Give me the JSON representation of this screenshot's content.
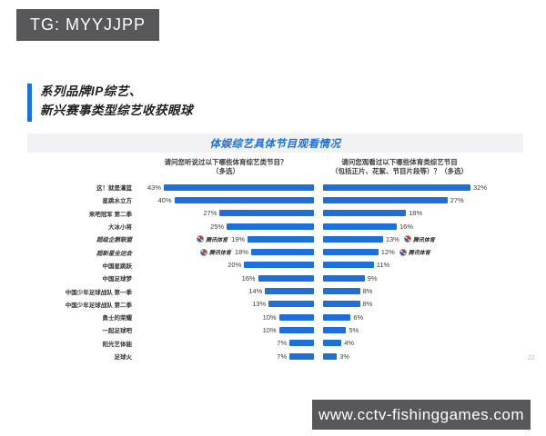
{
  "badges": {
    "top_left": "TG: MYYJJPP",
    "bottom_right": "www.cctv-fishinggames.com"
  },
  "slide": {
    "title_line1": "系列品牌IP综艺、",
    "title_line2": "新兴赛事类型综艺收获眼球",
    "page_number": "22"
  },
  "chart_data": {
    "type": "bar",
    "layout": "mirrored-horizontal-bars",
    "title": "体娱综艺具体节目观看情况",
    "unit": "%",
    "bar_color": "#1e6fd8",
    "questions": {
      "left": {
        "line1": "请问您听说过以下哪些体育综艺类节目？",
        "line2": "（多选）"
      },
      "right": {
        "line1": "请问您观看过以下哪些体育类综艺节目",
        "line2": "（包括正片、花絮、节目片段等）？（多选）"
      }
    },
    "categories": [
      "这！就是灌篮",
      "星跳水立方",
      "来吧冠军 第二季",
      "大冰小将",
      "超级企鹅联盟",
      "超新星全运会",
      "中国星跳跃",
      "中国足球梦",
      "中国少年足球战队 第一季",
      "中国少年足球战队 第二季",
      "勇士的荣耀",
      "一起足球吧",
      "阳光艺体能",
      "足球火"
    ],
    "series": [
      {
        "name": "请问您听说过以下哪些体育综艺类节目？（多选）",
        "values": [
          43,
          40,
          27,
          25,
          19,
          18,
          20,
          16,
          14,
          13,
          10,
          10,
          7,
          7
        ]
      },
      {
        "name": "请问您观看过以下哪些体育类综艺节目（包括正片、花絮、节目片段等）？（多选）",
        "values": [
          32,
          27,
          18,
          16,
          13,
          12,
          11,
          9,
          8,
          8,
          6,
          5,
          4,
          3
        ]
      }
    ],
    "branded_rows": [
      4,
      5
    ],
    "brand_label": "腾讯体育",
    "xlim_left": [
      0,
      43
    ],
    "xlim_right": [
      0,
      32
    ],
    "grid": false,
    "legend": false
  }
}
